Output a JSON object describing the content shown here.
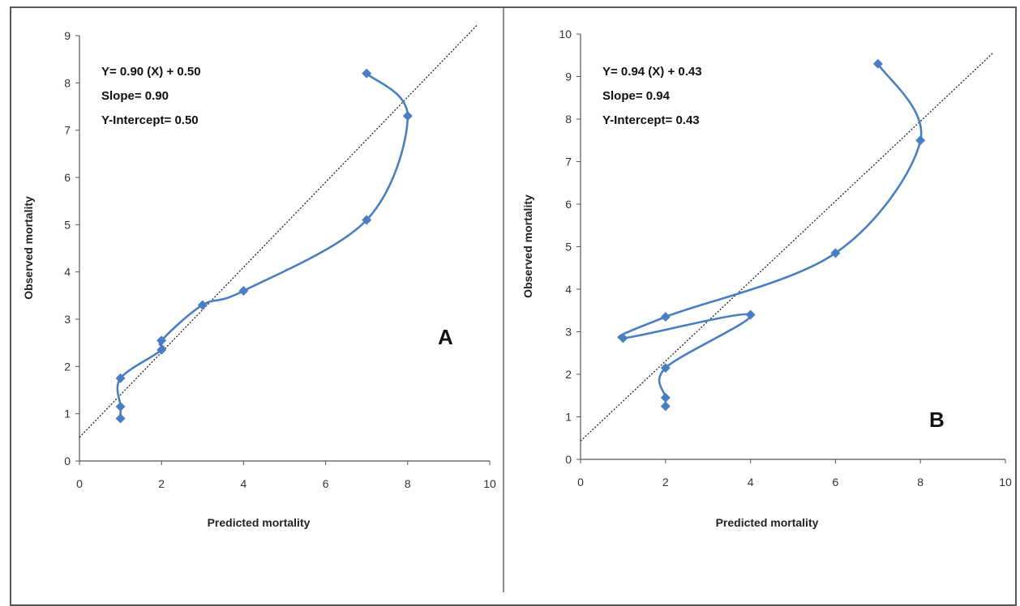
{
  "chart_data": [
    {
      "type": "line",
      "panel_label": "A",
      "xlabel": "Predicted mortality",
      "ylabel": "Observed mortality",
      "xlim": [
        0,
        10
      ],
      "ylim": [
        0,
        9
      ],
      "xticks": [
        0,
        2,
        4,
        6,
        8,
        10
      ],
      "yticks": [
        0,
        1,
        2,
        3,
        4,
        5,
        6,
        7,
        8,
        9
      ],
      "annotations": [
        "Y= 0.90 (X) + 0.50",
        "Slope= 0.90",
        "Y-Intercept= 0.50"
      ],
      "regression": {
        "slope": 0.9,
        "intercept": 0.5,
        "x_range": [
          0,
          9.7
        ]
      },
      "series": [
        {
          "color": "#4a7ec2",
          "x": [
            1,
            1,
            1,
            2,
            2,
            3,
            4,
            7,
            8,
            7
          ],
          "y": [
            0.9,
            1.15,
            1.75,
            2.35,
            2.55,
            3.3,
            3.6,
            5.1,
            7.3,
            8.2
          ]
        }
      ],
      "grid": false
    },
    {
      "type": "line",
      "panel_label": "B",
      "xlabel": "Predicted mortality",
      "ylabel": "Observed mortality",
      "xlim": [
        0,
        10
      ],
      "ylim": [
        0,
        10
      ],
      "xticks": [
        0,
        2,
        4,
        6,
        8,
        10
      ],
      "yticks": [
        0,
        1,
        2,
        3,
        4,
        5,
        6,
        7,
        8,
        9,
        10
      ],
      "annotations": [
        "Y= 0.94 (X) + 0.43",
        "Slope= 0.94",
        "Y-Intercept= 0.43"
      ],
      "regression": {
        "slope": 0.94,
        "intercept": 0.43,
        "x_range": [
          0,
          9.7
        ]
      },
      "series": [
        {
          "color": "#4a7ec2",
          "x": [
            2,
            2,
            2,
            4,
            1,
            2,
            6,
            8,
            7
          ],
          "y": [
            1.25,
            1.45,
            2.15,
            3.4,
            2.85,
            3.35,
            4.85,
            7.5,
            9.3
          ]
        }
      ],
      "grid": false
    }
  ]
}
